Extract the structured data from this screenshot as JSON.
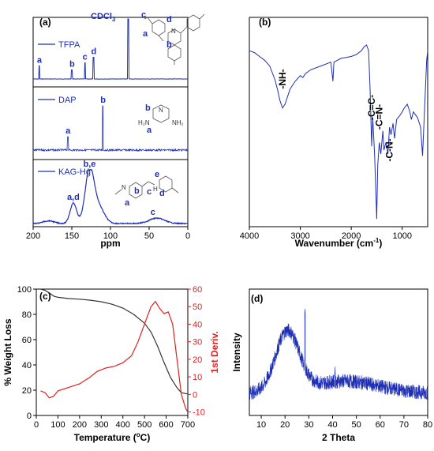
{
  "chart_data": [
    {
      "panel": "(a)",
      "type": "line",
      "xlabel": "ppm",
      "xlim": [
        200,
        0
      ],
      "xticks": [
        "200",
        "150",
        "100",
        "50",
        "0"
      ],
      "series": [
        {
          "name": "TFPA",
          "peaks": [
            {
              "x": 192,
              "rel": 0.22,
              "label": "a"
            },
            {
              "x": 150,
              "rel": 0.15,
              "label": "b"
            },
            {
              "x": 133,
              "rel": 0.27,
              "label": "c"
            },
            {
              "x": 122,
              "rel": 0.36,
              "label": "d"
            },
            {
              "x": 77,
              "rel": 1.0,
              "label": "CDCl3"
            }
          ]
        },
        {
          "name": "DAP",
          "peaks": [
            {
              "x": 155,
              "rel": 0.3,
              "label": "a"
            },
            {
              "x": 110,
              "rel": 1.0,
              "label": "b"
            }
          ]
        },
        {
          "name": "KAG-Hg",
          "peaks": [
            {
              "x": 148,
              "rel": 0.38,
              "label": "a,d"
            },
            {
              "x": 127,
              "rel": 1.0,
              "label": "b,e"
            },
            {
              "x": 40,
              "rel": 0.1,
              "label": "c"
            }
          ]
        }
      ],
      "struct_labels": {
        "tfpa": [
          "a",
          "b",
          "c",
          "d",
          "N"
        ],
        "dap": [
          "b",
          "a",
          "H₂N",
          "NH₂",
          "N"
        ],
        "kag": [
          "a",
          "b",
          "c",
          "d",
          "e",
          "N",
          "H"
        ]
      },
      "cdcl_main": "CDCl",
      "cdcl_sub": "3"
    },
    {
      "panel": "(b)",
      "type": "line",
      "xlabel_main": "Wavenumber (cm",
      "xlabel_sup": "-1",
      "xlabel_end": ")",
      "xlim": [
        4000,
        500
      ],
      "xticks": [
        "4000",
        "3000",
        "2000",
        "1000"
      ],
      "annotations": [
        {
          "x": 3350,
          "label": "-NH-"
        },
        {
          "x": 1600,
          "label": "-C=C-"
        },
        {
          "x": 1450,
          "label": "-C=N-"
        },
        {
          "x": 1250,
          "label": "-C-N-"
        }
      ],
      "points": [
        [
          4000,
          0.9
        ],
        [
          3900,
          0.89
        ],
        [
          3800,
          0.87
        ],
        [
          3700,
          0.85
        ],
        [
          3600,
          0.82
        ],
        [
          3500,
          0.75
        ],
        [
          3450,
          0.7
        ],
        [
          3400,
          0.64
        ],
        [
          3350,
          0.6
        ],
        [
          3300,
          0.62
        ],
        [
          3250,
          0.66
        ],
        [
          3200,
          0.7
        ],
        [
          3100,
          0.74
        ],
        [
          3000,
          0.77
        ],
        [
          2950,
          0.76
        ],
        [
          2900,
          0.78
        ],
        [
          2800,
          0.8
        ],
        [
          2600,
          0.82
        ],
        [
          2400,
          0.84
        ],
        [
          2360,
          0.74
        ],
        [
          2340,
          0.84
        ],
        [
          2200,
          0.86
        ],
        [
          2000,
          0.87
        ],
        [
          1900,
          0.88
        ],
        [
          1800,
          0.9
        ],
        [
          1750,
          0.92
        ],
        [
          1700,
          0.93
        ],
        [
          1660,
          0.9
        ],
        [
          1630,
          0.7
        ],
        [
          1600,
          0.4
        ],
        [
          1580,
          0.55
        ],
        [
          1560,
          0.45
        ],
        [
          1540,
          0.35
        ],
        [
          1500,
          0.02
        ],
        [
          1480,
          0.3
        ],
        [
          1450,
          0.42
        ],
        [
          1420,
          0.36
        ],
        [
          1380,
          0.48
        ],
        [
          1360,
          0.38
        ],
        [
          1320,
          0.42
        ],
        [
          1280,
          0.36
        ],
        [
          1250,
          0.5
        ],
        [
          1220,
          0.46
        ],
        [
          1180,
          0.52
        ],
        [
          1150,
          0.44
        ],
        [
          1110,
          0.54
        ],
        [
          1050,
          0.56
        ],
        [
          1000,
          0.58
        ],
        [
          960,
          0.6
        ],
        [
          900,
          0.62
        ],
        [
          850,
          0.58
        ],
        [
          820,
          0.54
        ],
        [
          780,
          0.58
        ],
        [
          700,
          0.55
        ],
        [
          640,
          0.5
        ],
        [
          600,
          0.35
        ],
        [
          560,
          0.6
        ],
        [
          520,
          0.85
        ],
        [
          500,
          0.9
        ]
      ]
    },
    {
      "panel": "(c)",
      "type": "line",
      "xlabel_main": "Temperature (",
      "xlabel_sup": "o",
      "xlabel_end": "C)",
      "ylabel": "% Weight Loss",
      "y2label": "1st Deriv.",
      "xlim": [
        0,
        700
      ],
      "ylim": [
        0,
        100
      ],
      "y2lim": [
        -12,
        60
      ],
      "xticks": [
        "0",
        "100",
        "200",
        "300",
        "400",
        "500",
        "600",
        "700"
      ],
      "yticks": [
        "0",
        "20",
        "40",
        "60",
        "80",
        "100"
      ],
      "y2ticks": [
        "-10",
        "0",
        "10",
        "20",
        "30",
        "40",
        "50",
        "60"
      ],
      "series": [
        {
          "name": "weight",
          "color": "#333333",
          "points": [
            [
              20,
              100
            ],
            [
              40,
              99
            ],
            [
              60,
              97
            ],
            [
              80,
              94.5
            ],
            [
              100,
              93.5
            ],
            [
              150,
              92.5
            ],
            [
              200,
              92
            ],
            [
              250,
              91.2
            ],
            [
              300,
              90
            ],
            [
              350,
              88
            ],
            [
              400,
              85
            ],
            [
              450,
              80
            ],
            [
              500,
              73
            ],
            [
              530,
              66
            ],
            [
              560,
              55
            ],
            [
              590,
              42
            ],
            [
              620,
              30
            ],
            [
              650,
              22
            ],
            [
              670,
              18
            ],
            [
              700,
              17
            ]
          ]
        },
        {
          "name": "derivative",
          "color": "#e02020",
          "points": [
            [
              20,
              2
            ],
            [
              40,
              1
            ],
            [
              60,
              -2
            ],
            [
              80,
              -1
            ],
            [
              100,
              2
            ],
            [
              150,
              4
            ],
            [
              200,
              6
            ],
            [
              250,
              10
            ],
            [
              280,
              13
            ],
            [
              320,
              15
            ],
            [
              360,
              16
            ],
            [
              400,
              18
            ],
            [
              440,
              22
            ],
            [
              470,
              30
            ],
            [
              500,
              40
            ],
            [
              530,
              50
            ],
            [
              550,
              53
            ],
            [
              570,
              49
            ],
            [
              590,
              46
            ],
            [
              610,
              47
            ],
            [
              630,
              40
            ],
            [
              650,
              20
            ],
            [
              670,
              0
            ],
            [
              690,
              -8
            ],
            [
              700,
              -10
            ]
          ]
        }
      ]
    },
    {
      "panel": "(d)",
      "type": "line",
      "xlabel": "2 Theta",
      "ylabel": "Intensity",
      "xlim": [
        5,
        80
      ],
      "xticks": [
        "10",
        "20",
        "30",
        "40",
        "50",
        "60",
        "70",
        "80"
      ],
      "series_color": "#1f2fb5"
    }
  ]
}
